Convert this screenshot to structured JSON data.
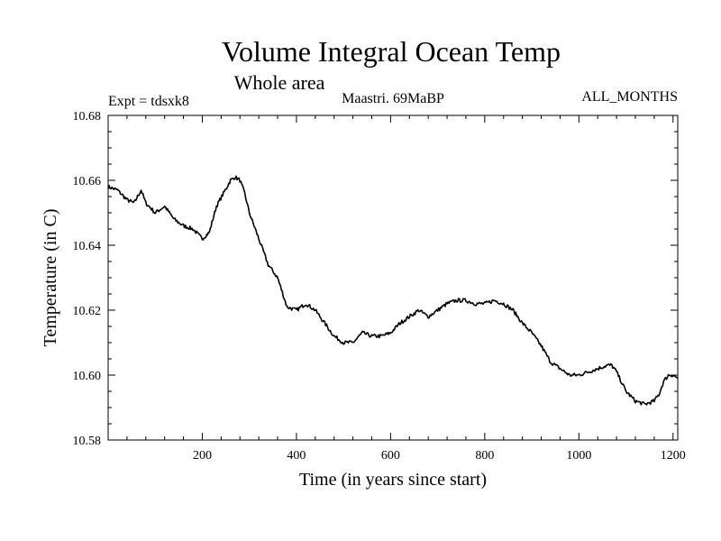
{
  "chart_data": {
    "type": "line",
    "title": "Volume Integral Ocean Temp",
    "subtitle": "Whole area",
    "annotations": {
      "left": "Expt = tdsxk8",
      "center": "Maastri.  69MaBP",
      "right": "ALL_MONTHS"
    },
    "xlabel": "Time (in years since start)",
    "ylabel": "Temperature (in C)",
    "xlim": [
      0,
      1210
    ],
    "ylim": [
      10.58,
      10.68
    ],
    "x_ticks": [
      200,
      400,
      600,
      800,
      1000,
      1200
    ],
    "x_tick_labels": [
      "200",
      "400",
      "600",
      "800",
      "1000",
      "1200"
    ],
    "y_ticks": [
      10.58,
      10.6,
      10.62,
      10.64,
      10.66,
      10.68
    ],
    "y_tick_labels": [
      "10.58",
      "10.60",
      "10.62",
      "10.64",
      "10.66",
      "10.68"
    ],
    "grid": false,
    "series": [
      {
        "name": "tdsxk8",
        "x": [
          0,
          20,
          40,
          55,
          70,
          80,
          100,
          120,
          140,
          160,
          180,
          200,
          215,
          230,
          245,
          260,
          270,
          280,
          290,
          300,
          320,
          340,
          360,
          380,
          400,
          420,
          440,
          460,
          480,
          500,
          520,
          540,
          560,
          580,
          600,
          620,
          640,
          660,
          680,
          700,
          720,
          740,
          760,
          780,
          800,
          820,
          840,
          860,
          880,
          900,
          920,
          940,
          960,
          980,
          1000,
          1020,
          1040,
          1060,
          1070,
          1080,
          1100,
          1120,
          1140,
          1160,
          1170,
          1180,
          1190,
          1200,
          1210
        ],
        "y": [
          10.658,
          10.657,
          10.654,
          10.653,
          10.657,
          10.653,
          10.65,
          10.652,
          10.648,
          10.646,
          10.645,
          10.642,
          10.644,
          10.652,
          10.656,
          10.66,
          10.661,
          10.66,
          10.656,
          10.65,
          10.642,
          10.634,
          10.63,
          10.621,
          10.62,
          10.622,
          10.62,
          10.616,
          10.612,
          10.61,
          10.61,
          10.613,
          10.612,
          10.612,
          10.613,
          10.616,
          10.618,
          10.62,
          10.618,
          10.62,
          10.622,
          10.623,
          10.623,
          10.622,
          10.622,
          10.623,
          10.622,
          10.62,
          10.616,
          10.613,
          10.609,
          10.604,
          10.602,
          10.6,
          10.6,
          10.601,
          10.602,
          10.603,
          10.603,
          10.601,
          10.595,
          10.592,
          10.591,
          10.592,
          10.594,
          10.598,
          10.6,
          10.6,
          10.599
        ]
      }
    ]
  }
}
